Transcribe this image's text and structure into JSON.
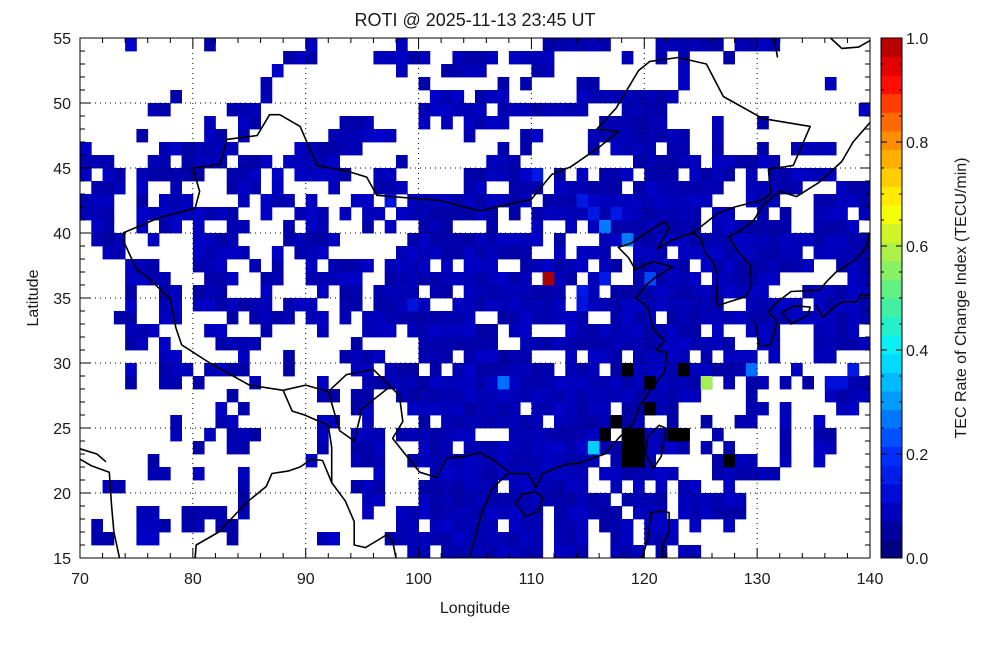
{
  "chart_data": {
    "type": "heatmap",
    "title": "ROTI @ 2025-11-13 23:45 UT",
    "xlabel": "Longitude",
    "ylabel": "Latitude",
    "xlim": [
      70,
      140
    ],
    "ylim": [
      15,
      55
    ],
    "x_ticks": [
      "70",
      "80",
      "90",
      "100",
      "110",
      "120",
      "130",
      "140"
    ],
    "y_ticks": [
      "15",
      "20",
      "25",
      "30",
      "35",
      "40",
      "45",
      "50",
      "55"
    ],
    "grid": true,
    "cell_size_deg": 1,
    "colorbar": {
      "label": "TEC Rate of Change Index (TECU/min)",
      "range": [
        0,
        1
      ],
      "ticks": [
        "0.0",
        "0.2",
        "0.4",
        "0.6",
        "0.8",
        "1.0"
      ],
      "levels": 28,
      "position": "right"
    },
    "colors": {
      "no_data": "#ffffff",
      "off_scale": "#000000",
      "coastline": "#000000"
    },
    "default_value": 0.08,
    "rows_by_lat": {
      "55": "74,81,90,98,111-116,121-126,128-131",
      "54": "88-90,96-100,103-106,108-111,118,121,123,127",
      "53": "87,98,102-105,110-111,123",
      "52": "86,100,107,109,114-115,123,136",
      "51": "78,86,101-103,105-107,114-122",
      "50": "76-77,83-85,100-105,107-114,118-121,139",
      "49": "81,84-85,93-95,100,102,104-107,116-121,126,130",
      "48": "75,81-82,84,92-97,104,109-110,115-123,126",
      "47": "70,77-83,89-94,107,109,115,117-120,122-123,126,130,133-136",
      "46": "70-72,76-77,79-82,84-86,88-92,98,106-108,119-124,126-131",
      "45": "70,72-73,75-80,83-85,87,89-93,96-97,104-110,112,114,116-118,120-122,124-127,129,131-136",
      "44": "71-73,75,78,83-85,87,92,96-98,104-105,108-110,112-117,119-126,129-133,137-139",
      "43": "70-72,75,77-79,84,86-88,90,94-95,97,99-109,111-125,129-131,135-139",
      "42": "70-72,75-83,86,89-91,93,95-96,98-106,108,110-124,126-127,130,132,135-137,139",
      "41": "71-72,75,77-78,80,83-84,88,90-91,95,97,100-102,106,110,113,115-124,126-132,135-138",
      "40": "71-73,76,80-83,88-92,99-110,112,116-139",
      "39": "72-73,80-84,87,89-91,98-109,112,114-116,119-121,123-133,135-139",
      "38": "74-76,80-82,85,87,90,92-95,97-100,102,104-106,109-114,116-117,119-123,125-134,137-139",
      "37": "74-77,81-83,86-87,90-94,97-109,111-113,115-116,119-124,126-131,138-139",
      "36": "74,77-78,80-82,86,91,93-94,96-99,101-102,104-112,114-115,117-130,134-139",
      "35": "74,77-78,80-86,88-90,93-94,96-100,103-112,114-126,129-133,135-139",
      "34": "73-74,77-78,83,85-88,90-91,93,95-104,107-114,117-120,122-139",
      "33": "74-76,81-82,86,91,95-97,99-106,108-109,113-124,126,129-131,135-138",
      "32": "74-75,77,82-85,94,100-106,109-127,130-131,135-139",
      "31": "77-78,84,88,93-96,100-102,104-109,113,115-117,119-123,125,127-129,131,135-136",
      "30": "74,77-79,81-84,88,94-95,97-99,101,103-111,113-115,117-129,133,138",
      "29": "74,77-78,80,85,91,95-125,127,129-130,132,134,136-139",
      "28": "83,91-92,94-95,98-124,129,136-139",
      "27": "82,84,94-95,99-108,110-116,118-122,129-130,132,137-138",
      "26": "78,82-83,91-92,95,100,102-110,112-119,122,125,128-129,132,135",
      "25": "78,81,83-85,91,94-96,98-104,108-116,118-123,126,132,135-136",
      "24": "80,83-84,91,94-96,100-102,104-123,125,127,132,135-136",
      "23": "76,90,94-96,99-115,117-120,126-129,132,135",
      "22": "76-77,80,84,96,101-114,116-122,126-131",
      "21": "72-73,84,94-96,100-106,108-114,117,119,121,123-124,127",
      "20": "84,95-96,100-116,118-121,123-128",
      "19": "75-76,79-82,84,95,98-110,112-117,119-121,123-128",
      "18": "71,75-77,79-80,82-83,98-99,101-106,108-110,112-114,116-118,120-122,124,127",
      "17": "71-72,75-76,83,91-92,97-110,112-114,117-118,120-122",
      "16": "99-100,102-110,112-114,117-119,121,123-124"
    },
    "special_cells": [
      {
        "lon": 111,
        "lat": 37,
        "value": 1.0
      },
      {
        "lon": 125,
        "lat": 29,
        "value": 0.58
      },
      {
        "lon": 115,
        "lat": 24,
        "value": 0.36
      },
      {
        "lon": 116,
        "lat": 41,
        "value": 0.27
      },
      {
        "lon": 118,
        "lat": 40,
        "value": 0.27
      },
      {
        "lon": 107,
        "lat": 29,
        "value": 0.26
      },
      {
        "lon": 129,
        "lat": 30,
        "value": 0.26
      },
      {
        "lon": 120,
        "lat": 37,
        "value": 0.22
      },
      {
        "lon": 110,
        "lat": 45,
        "value": 0.15
      },
      {
        "lon": 114,
        "lat": 43,
        "value": 0.15
      },
      {
        "lon": 115,
        "lat": 42,
        "value": 0.15
      },
      {
        "lon": 117,
        "lat": 42,
        "value": 0.15
      },
      {
        "lon": 116,
        "lat": 37,
        "value": 0.15
      },
      {
        "lon": 114,
        "lat": 36,
        "value": 0.15
      },
      {
        "lon": 114,
        "lat": 35,
        "value": 0.14
      },
      {
        "lon": 97,
        "lat": 43,
        "value": 0.14
      },
      {
        "lon": 99,
        "lat": 35,
        "value": 0.14
      },
      {
        "lon": 138,
        "lat": 30,
        "value": 0.15
      },
      {
        "lon": 136,
        "lat": 29,
        "value": 0.13
      },
      {
        "lon": 137,
        "lat": 29,
        "value": 0.13
      }
    ],
    "off_scale_cells": [
      {
        "lon": 118,
        "lat": 30
      },
      {
        "lon": 123,
        "lat": 30
      },
      {
        "lon": 120,
        "lat": 29
      },
      {
        "lon": 120,
        "lat": 27
      },
      {
        "lon": 117,
        "lat": 26
      },
      {
        "lon": 116,
        "lat": 25
      },
      {
        "lon": 118,
        "lat": 25
      },
      {
        "lon": 119,
        "lat": 25
      },
      {
        "lon": 122,
        "lat": 25
      },
      {
        "lon": 123,
        "lat": 25
      },
      {
        "lon": 118,
        "lat": 24
      },
      {
        "lon": 119,
        "lat": 24
      },
      {
        "lon": 118,
        "lat": 23
      },
      {
        "lon": 119,
        "lat": 23
      },
      {
        "lon": 127,
        "lat": 23
      }
    ]
  }
}
